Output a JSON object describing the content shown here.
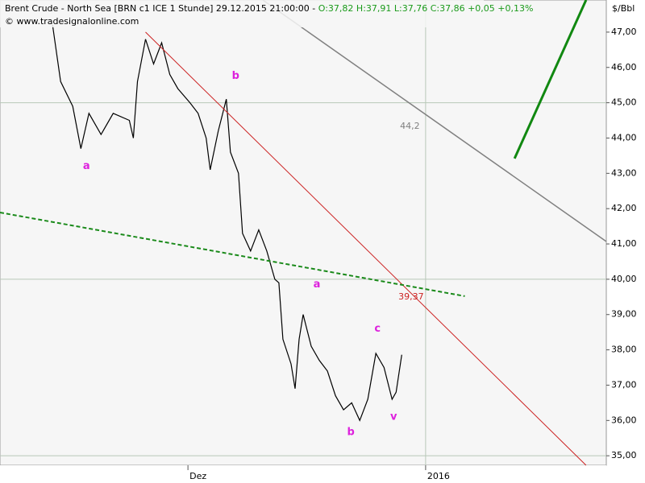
{
  "chart_data": {
    "type": "line",
    "title": "Brent Crude - North Sea [BRN c1 ICE  1 Stunde] 29.12.2015 21:00:00 -",
    "quote": "O:37,82 H:37,91 L:37,76 C:37,86 +0,05 +0,13%",
    "subtitle": "© www.tradesignalonline.com",
    "y_unit": "$/Bbl",
    "xlim": [
      0,
      150
    ],
    "ylim": [
      34.73,
      47.91
    ],
    "xticks": [
      {
        "value": 46.5,
        "label": "Dez"
      },
      {
        "value": 105.3,
        "label": "2016"
      }
    ],
    "yticks": [
      {
        "value": 35,
        "label": "35,00"
      },
      {
        "value": 36,
        "label": "36,00"
      },
      {
        "value": 37,
        "label": "37,00"
      },
      {
        "value": 38,
        "label": "38,00"
      },
      {
        "value": 39,
        "label": "39,00"
      },
      {
        "value": 40,
        "label": "40,00"
      },
      {
        "value": 41,
        "label": "41,00"
      },
      {
        "value": 42,
        "label": "42,00"
      },
      {
        "value": 43,
        "label": "43,00"
      },
      {
        "value": 44,
        "label": "44,00"
      },
      {
        "value": 45,
        "label": "45,00"
      },
      {
        "value": 46,
        "label": "46,00"
      },
      {
        "value": 47,
        "label": "47,00"
      }
    ],
    "grid": true,
    "series": [
      {
        "color": "#000000",
        "dash": false,
        "width": 1.2,
        "x": [
          13,
          15,
          18,
          20,
          22,
          25,
          28,
          32,
          33,
          34,
          36,
          38,
          40,
          42,
          44,
          47,
          49,
          51,
          52,
          54,
          56,
          57,
          59,
          60,
          62,
          64,
          66,
          68,
          69,
          70,
          72,
          73,
          74,
          75,
          77,
          79,
          81,
          83,
          85,
          87,
          89,
          91,
          93,
          95,
          97,
          98,
          99.4
        ],
        "values": [
          47.2,
          45.6,
          44.9,
          43.7,
          44.7,
          44.1,
          44.7,
          44.5,
          44.0,
          45.6,
          46.8,
          46.1,
          46.7,
          45.8,
          45.4,
          45.0,
          44.7,
          44.0,
          43.1,
          44.2,
          45.1,
          43.6,
          43.0,
          41.3,
          40.8,
          41.4,
          40.8,
          40.0,
          39.9,
          38.3,
          37.6,
          36.9,
          38.3,
          39.0,
          38.1,
          37.7,
          37.4,
          36.7,
          36.3,
          36.5,
          36.0,
          36.6,
          37.9,
          37.5,
          36.6,
          36.8,
          37.86
        ]
      },
      {
        "color": "#cc2222",
        "dash": false,
        "width": 1,
        "x": [
          36,
          145
        ],
        "values": [
          47.0,
          34.73
        ]
      },
      {
        "color": "#808080",
        "dash": false,
        "width": 1.5,
        "x": [
          65,
          150
        ],
        "values": [
          47.91,
          41.07
        ]
      },
      {
        "color": "#1a8a1a",
        "dash": true,
        "width": 2,
        "x": [
          0,
          115
        ],
        "values": [
          41.89,
          39.52
        ]
      },
      {
        "color": "#118811",
        "dash": false,
        "width": 3,
        "x": [
          127.3,
          145
        ],
        "values": [
          43.42,
          47.91
        ]
      }
    ],
    "annotations": [
      {
        "text": "a",
        "x": 21.4,
        "y": 43.2,
        "color": "#dd22dd"
      },
      {
        "text": "b",
        "x": 58.3,
        "y": 45.75,
        "color": "#dd22dd"
      },
      {
        "text": "a",
        "x": 78.4,
        "y": 39.85,
        "color": "#dd22dd"
      },
      {
        "text": "c",
        "x": 93.4,
        "y": 38.6,
        "color": "#dd22dd"
      },
      {
        "text": "b",
        "x": 86.8,
        "y": 35.66,
        "color": "#dd22dd"
      },
      {
        "text": "v",
        "x": 97.4,
        "y": 36.1,
        "color": "#dd22dd"
      },
      {
        "text": "44,2",
        "x": 101.4,
        "y": 44.33,
        "color": "#808080"
      },
      {
        "text": "39,37",
        "x": 101.7,
        "y": 39.5,
        "color": "#cc2222"
      }
    ]
  }
}
